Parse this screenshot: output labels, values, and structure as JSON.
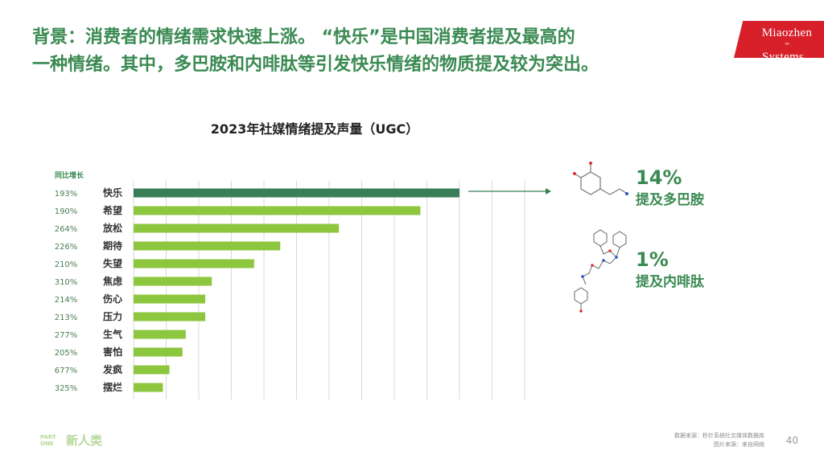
{
  "headline": {
    "line1": "背景：消费者的情绪需求快速上涨。 “快乐”是中国消费者提及最高的",
    "line2": "一种情绪。其中，多巴胺和内啡肽等引发快乐情绪的物质提及较为突出。"
  },
  "logo": {
    "line1": "Miaozhen",
    "line2": "Systems",
    "mark": "™"
  },
  "chart_data": {
    "type": "bar",
    "orientation": "horizontal",
    "title": "2023年社媒情绪提及声量（UGC）",
    "growth_header": "同比增长",
    "categories": [
      "快乐",
      "希望",
      "放松",
      "期待",
      "失望",
      "焦虑",
      "伤心",
      "压力",
      "生气",
      "害怕",
      "发疯",
      "摆烂"
    ],
    "values": [
      100,
      88,
      63,
      45,
      37,
      24,
      22,
      22,
      16,
      15,
      11,
      9
    ],
    "growth": [
      "193%",
      "190%",
      "264%",
      "226%",
      "210%",
      "310%",
      "214%",
      "213%",
      "277%",
      "205%",
      "677%",
      "325%"
    ],
    "xlim": [
      0,
      120
    ],
    "grid": true,
    "colors": {
      "highlight": "#3a7e57",
      "bar": "#8dc63f"
    }
  },
  "callouts": [
    {
      "percent": "14%",
      "label": "提及多巴胺",
      "molecule": "dopamine-molecule"
    },
    {
      "percent": "1%",
      "label": "提及内啡肽",
      "molecule": "endorphin-molecule"
    }
  ],
  "footer": {
    "part_line1": "PART",
    "part_line2": "ONE",
    "brand": "新人类",
    "source_line1": "数据来源：秒针系统社交媒体数据库",
    "source_line2": "图片来源：来自网络",
    "page": "40"
  },
  "colors": {
    "accent": "#3a8a52",
    "brand_red": "#d7202a"
  }
}
